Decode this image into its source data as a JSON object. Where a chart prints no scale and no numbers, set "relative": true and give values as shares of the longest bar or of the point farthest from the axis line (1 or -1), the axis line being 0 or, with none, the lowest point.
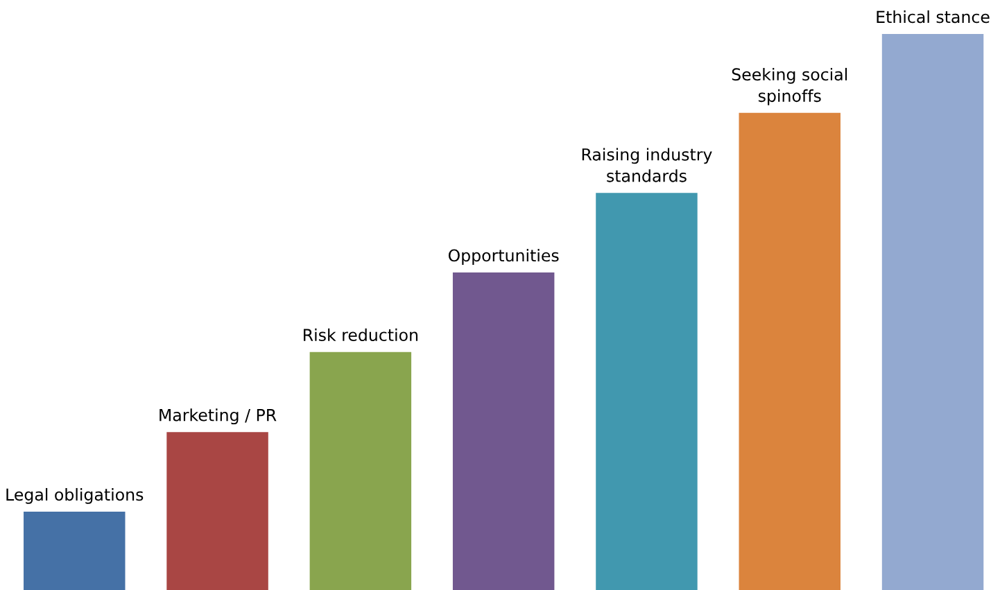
{
  "chart_data": {
    "type": "bar",
    "relative": true,
    "categories": [
      "Legal obligations",
      "Marketing / PR",
      "Risk reduction",
      "Opportunities",
      "Raising industry\nstandards",
      "Seeking social\nspinoffs",
      "Ethical stance"
    ],
    "values": [
      0.141,
      0.284,
      0.428,
      0.571,
      0.714,
      0.858,
      1
    ],
    "colors": [
      "#4571a6",
      "#a94644",
      "#89a54e",
      "#71588f",
      "#4198af",
      "#db843d",
      "#93a9d0"
    ]
  }
}
